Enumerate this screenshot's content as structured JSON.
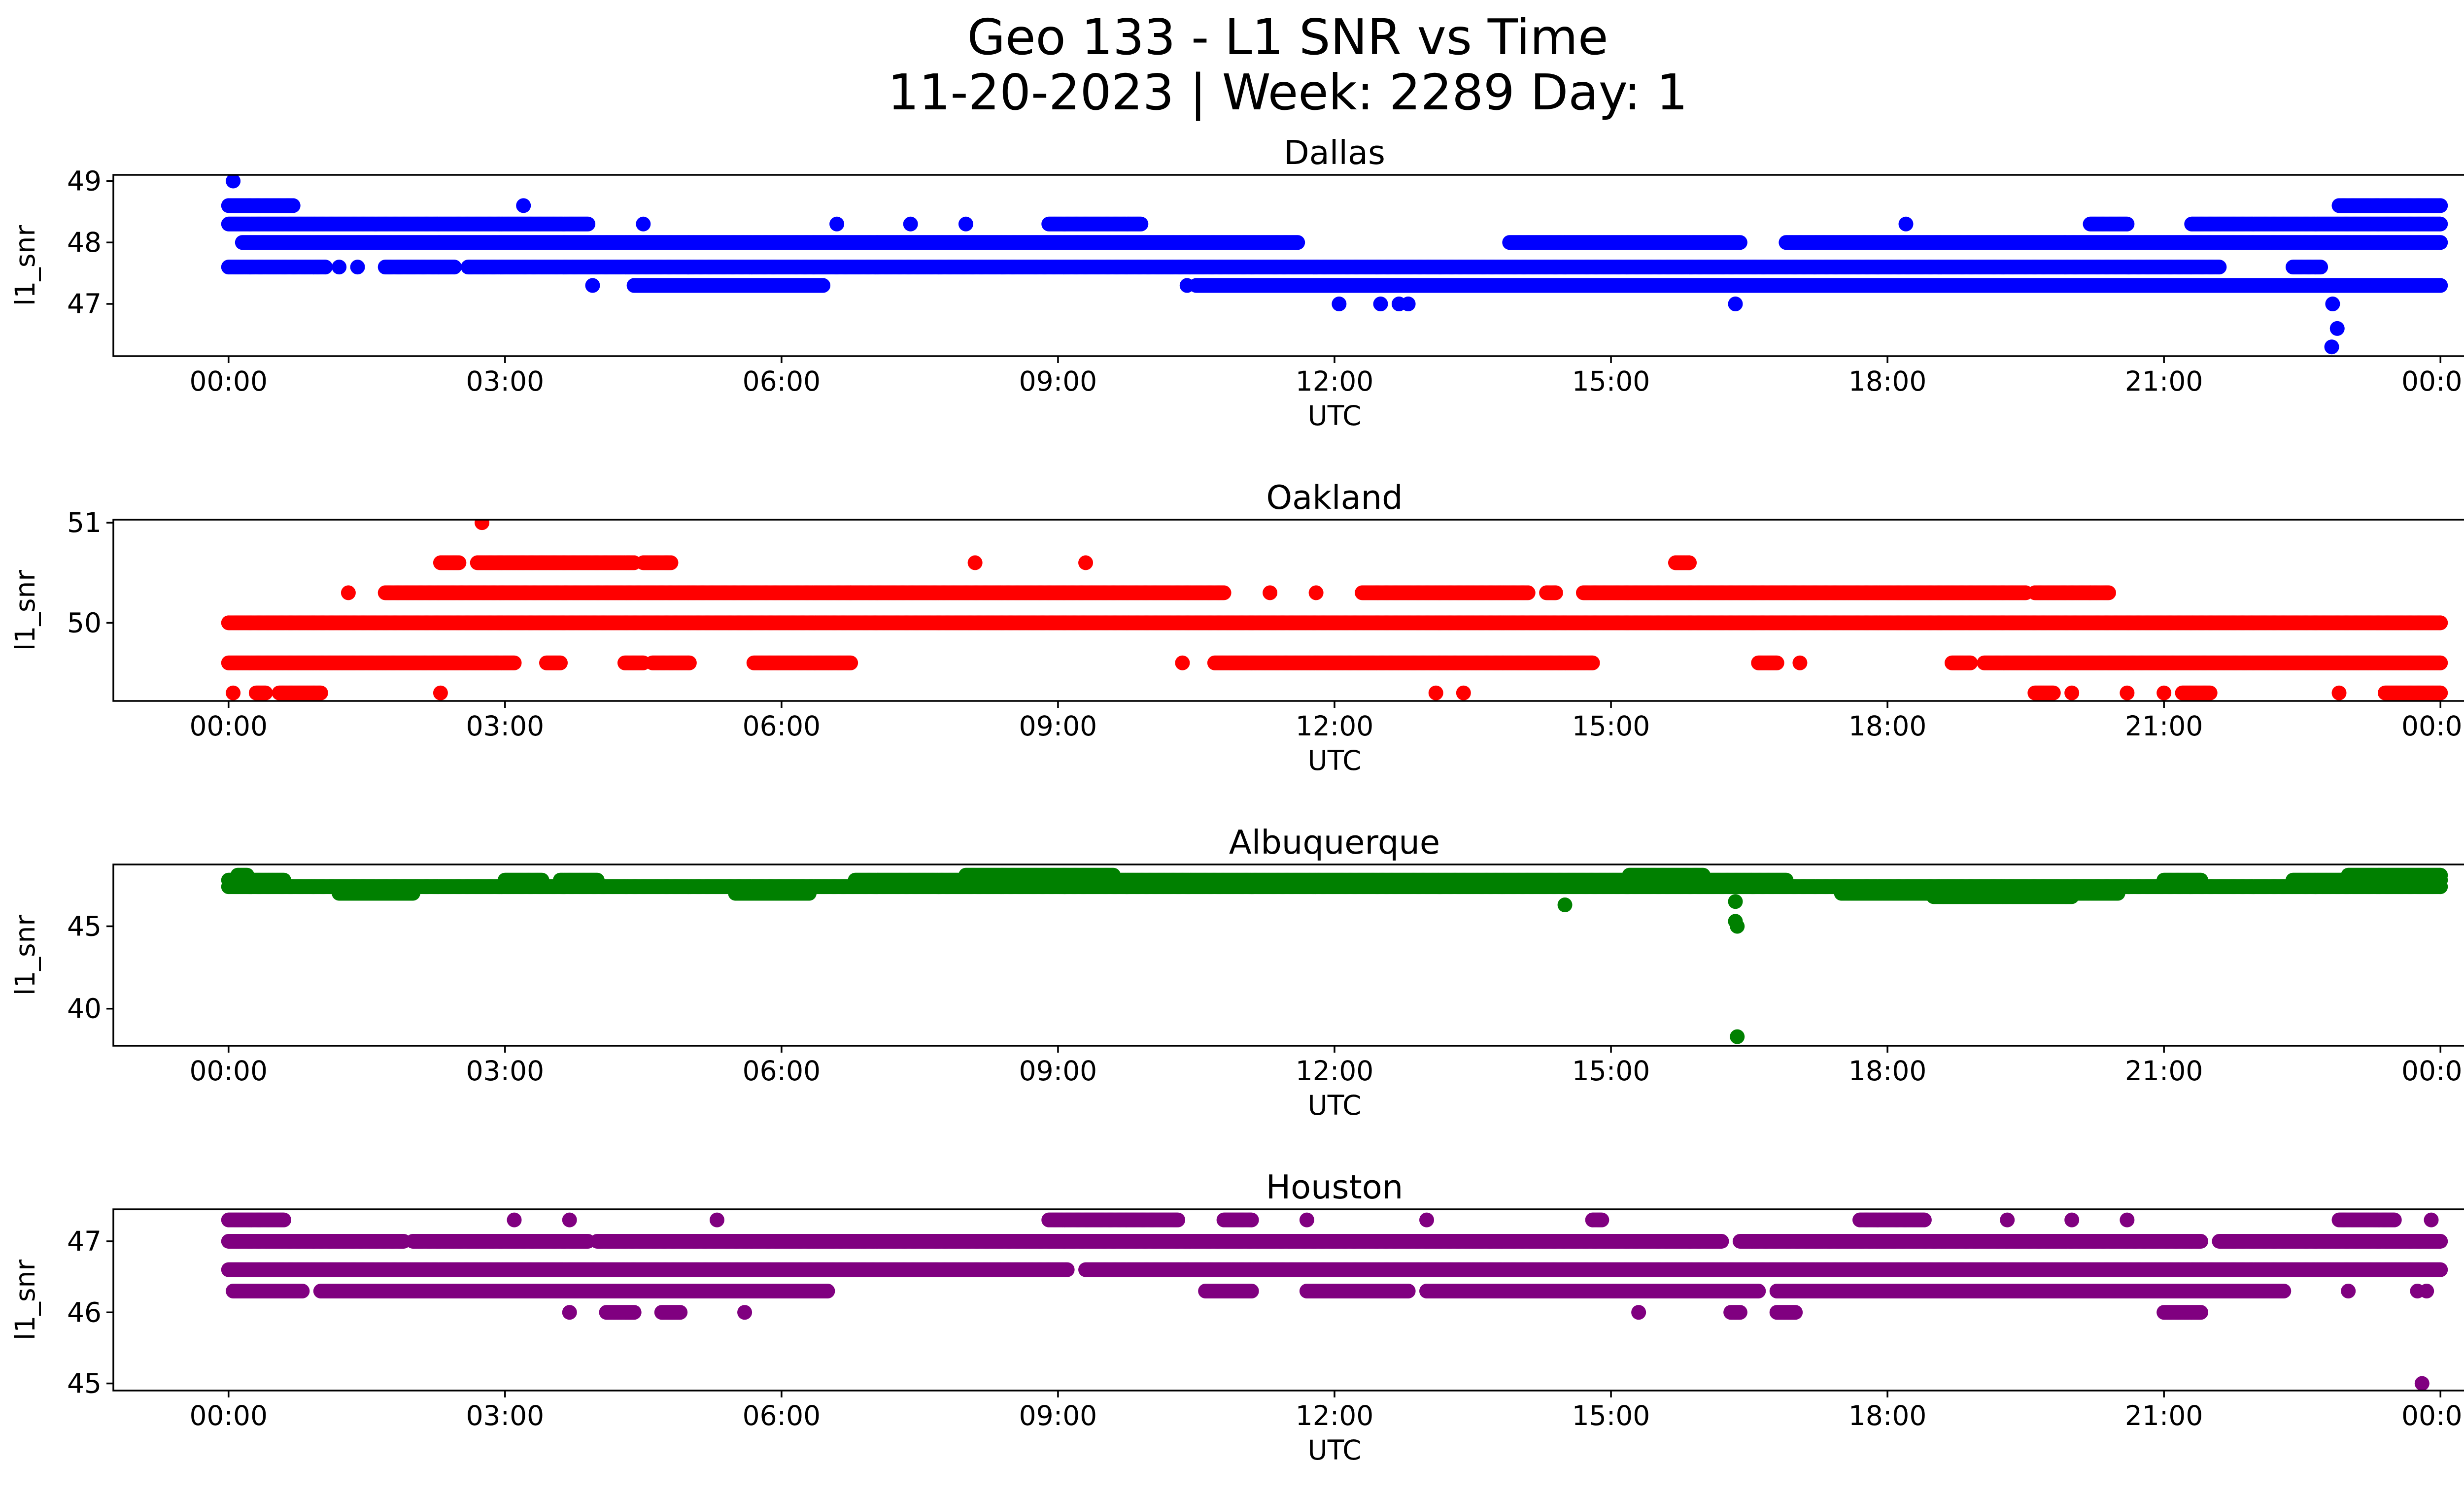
{
  "figure": {
    "title_line1": "Geo 133 - L1 SNR vs Time",
    "title_line2": "11-20-2023 | Week: 2289 Day: 1"
  },
  "chart_data": [
    {
      "type": "scatter",
      "title": "Dallas",
      "xlabel": "UTC",
      "ylabel": "l1_snr",
      "color": "#0000ff",
      "xlim": [
        -1.25,
        25.25
      ],
      "ylim": [
        46.15,
        49.1
      ],
      "xticks": [
        0,
        3,
        6,
        9,
        12,
        15,
        18,
        21,
        24
      ],
      "xtick_labels": [
        "00:00",
        "03:00",
        "06:00",
        "09:00",
        "12:00",
        "15:00",
        "18:00",
        "21:00",
        "00:00"
      ],
      "yticks": [
        47,
        48,
        49
      ],
      "ytick_labels": [
        "47",
        "48",
        "49"
      ],
      "bands": [
        {
          "y": 48.3,
          "segments": [
            [
              0,
              3.9
            ],
            [
              4.5,
              4.5
            ],
            [
              6.6,
              6.6
            ],
            [
              7.4,
              7.4
            ],
            [
              8.0,
              8.0
            ],
            [
              8.9,
              9.9
            ],
            [
              18.2,
              18.2
            ],
            [
              20.2,
              20.6
            ],
            [
              21.3,
              24
            ]
          ]
        },
        {
          "y": 48.0,
          "segments": [
            [
              0.15,
              11.6
            ],
            [
              13.9,
              16.4
            ],
            [
              16.9,
              24
            ]
          ]
        },
        {
          "y": 47.6,
          "segments": [
            [
              0,
              1.05
            ],
            [
              1.7,
              2.45
            ],
            [
              2.6,
              21.6
            ],
            [
              22.4,
              22.7
            ]
          ]
        },
        {
          "y": 47.3,
          "segments": [
            [
              4.4,
              6.45
            ],
            [
              10.5,
              11.2
            ],
            [
              11.1,
              24
            ]
          ]
        },
        {
          "y": 48.6,
          "segments": [
            [
              0,
              0.7
            ],
            [
              3.2,
              3.2
            ],
            [
              22.9,
              24
            ]
          ]
        }
      ],
      "points": [
        [
          0.05,
          49.0
        ],
        [
          1.2,
          47.6
        ],
        [
          1.4,
          47.6
        ],
        [
          3.95,
          47.3
        ],
        [
          10.4,
          47.3
        ],
        [
          12.05,
          47.0
        ],
        [
          12.5,
          47.0
        ],
        [
          12.7,
          47.0
        ],
        [
          12.8,
          47.0
        ],
        [
          16.35,
          47.0
        ],
        [
          22.83,
          47.3
        ],
        [
          22.83,
          47.0
        ],
        [
          22.88,
          46.6
        ],
        [
          22.82,
          46.3
        ]
      ]
    },
    {
      "type": "scatter",
      "title": "Oakland",
      "xlabel": "UTC",
      "ylabel": "l1_snr",
      "color": "#ff0000",
      "xlim": [
        -1.25,
        25.25
      ],
      "ylim": [
        49.22,
        51.03
      ],
      "xticks": [
        0,
        3,
        6,
        9,
        12,
        15,
        18,
        21,
        24
      ],
      "xtick_labels": [
        "00:00",
        "03:00",
        "06:00",
        "09:00",
        "12:00",
        "15:00",
        "18:00",
        "21:00",
        "00:00"
      ],
      "yticks": [
        50,
        51
      ],
      "ytick_labels": [
        "50",
        "51"
      ],
      "bands": [
        {
          "y": 50.0,
          "segments": [
            [
              0,
              24
            ]
          ]
        },
        {
          "y": 49.6,
          "segments": [
            [
              0,
              3.1
            ],
            [
              3.45,
              3.6
            ],
            [
              4.3,
              4.5
            ],
            [
              4.6,
              5.0
            ],
            [
              5.7,
              6.75
            ],
            [
              10.35,
              10.35
            ],
            [
              10.7,
              14.8
            ],
            [
              16.6,
              16.8
            ],
            [
              17.05,
              17.05
            ],
            [
              18.7,
              18.9
            ],
            [
              19.05,
              24
            ]
          ]
        },
        {
          "y": 50.3,
          "segments": [
            [
              1.3,
              1.3
            ],
            [
              1.7,
              6.75
            ],
            [
              6.75,
              10.8
            ],
            [
              11.3,
              11.3
            ],
            [
              11.8,
              11.8
            ],
            [
              12.3,
              14.1
            ],
            [
              14.3,
              14.4
            ],
            [
              14.7,
              19.5
            ],
            [
              19.6,
              20.2
            ],
            [
              20.2,
              20.4
            ]
          ]
        },
        {
          "y": 50.6,
          "segments": [
            [
              2.3,
              2.5
            ],
            [
              2.7,
              4.4
            ],
            [
              4.5,
              4.8
            ],
            [
              8.1,
              8.1
            ],
            [
              9.3,
              9.3
            ],
            [
              15.7,
              15.85
            ]
          ]
        },
        {
          "y": 49.3,
          "segments": [
            [
              0.05,
              0.05
            ],
            [
              0.3,
              0.4
            ],
            [
              0.55,
              1.0
            ],
            [
              19.6,
              19.8
            ],
            [
              20.0,
              20.0
            ],
            [
              20.6,
              20.6
            ],
            [
              21.0,
              21.0
            ],
            [
              21.2,
              21.5
            ],
            [
              22.9,
              22.9
            ],
            [
              23.4,
              24
            ]
          ]
        }
      ],
      "points": [
        [
          2.75,
          51.0
        ],
        [
          2.3,
          49.3
        ],
        [
          13.1,
          49.3
        ],
        [
          13.4,
          49.3
        ]
      ]
    },
    {
      "type": "scatter",
      "title": "Albuquerque",
      "xlabel": "UTC",
      "ylabel": "l1_snr",
      "color": "#008000",
      "xlim": [
        -1.25,
        25.25
      ],
      "ylim": [
        37.75,
        48.75
      ],
      "xticks": [
        0,
        3,
        6,
        9,
        12,
        15,
        18,
        21,
        24
      ],
      "xtick_labels": [
        "00:00",
        "03:00",
        "06:00",
        "09:00",
        "12:00",
        "15:00",
        "18:00",
        "21:00",
        "00:00"
      ],
      "yticks": [
        40,
        45
      ],
      "ytick_labels": [
        "40",
        "45"
      ],
      "bands": [
        {
          "y": 47.4,
          "segments": [
            [
              0,
              24
            ]
          ]
        },
        {
          "y": 47.8,
          "segments": [
            [
              0,
              0.6
            ],
            [
              3.0,
              3.4
            ],
            [
              3.6,
              4.0
            ],
            [
              6.8,
              16.9
            ],
            [
              21.0,
              21.4
            ],
            [
              22.4,
              24
            ]
          ]
        },
        {
          "y": 47.0,
          "segments": [
            [
              1.2,
              2.0
            ],
            [
              5.5,
              6.3
            ],
            [
              17.5,
              20.5
            ]
          ]
        },
        {
          "y": 48.1,
          "segments": [
            [
              0.1,
              0.2
            ],
            [
              8.0,
              9.6
            ],
            [
              15.2,
              16.0
            ],
            [
              23.0,
              24
            ]
          ]
        },
        {
          "y": 46.8,
          "segments": [
            [
              18.5,
              20.0
            ]
          ]
        }
      ],
      "points": [
        [
          14.5,
          46.3
        ],
        [
          16.35,
          46.5
        ],
        [
          16.35,
          45.3
        ],
        [
          16.37,
          45.0
        ],
        [
          16.37,
          38.3
        ]
      ]
    },
    {
      "type": "scatter",
      "title": "Houston",
      "xlabel": "UTC",
      "ylabel": "l1_snr",
      "color": "#800080",
      "xlim": [
        -1.25,
        25.25
      ],
      "ylim": [
        44.9,
        47.45
      ],
      "xticks": [
        0,
        3,
        6,
        9,
        12,
        15,
        18,
        21,
        24
      ],
      "xtick_labels": [
        "00:00",
        "03:00",
        "06:00",
        "09:00",
        "12:00",
        "15:00",
        "18:00",
        "21:00",
        "00:00"
      ],
      "yticks": [
        45,
        46,
        47
      ],
      "ytick_labels": [
        "45",
        "46",
        "47"
      ],
      "bands": [
        {
          "y": 47.0,
          "segments": [
            [
              0,
              1.9
            ],
            [
              2.0,
              3.9
            ],
            [
              4.0,
              16.2
            ],
            [
              16.4,
              21.4
            ],
            [
              21.6,
              24
            ]
          ]
        },
        {
          "y": 46.6,
          "segments": [
            [
              0,
              9.1
            ],
            [
              9.3,
              24
            ]
          ]
        },
        {
          "y": 46.3,
          "segments": [
            [
              0.05,
              0.8
            ],
            [
              1.0,
              6.5
            ],
            [
              10.6,
              11.1
            ],
            [
              11.7,
              12.8
            ],
            [
              13.0,
              16.6
            ],
            [
              16.8,
              22.3
            ]
          ]
        },
        {
          "y": 47.3,
          "segments": [
            [
              0,
              0.6
            ],
            [
              3.1,
              3.1
            ],
            [
              3.7,
              3.7
            ],
            [
              5.3,
              5.3
            ],
            [
              8.9,
              10.3
            ],
            [
              10.8,
              11.1
            ],
            [
              11.7,
              11.7
            ],
            [
              13.0,
              13.0
            ],
            [
              14.8,
              14.9
            ],
            [
              17.7,
              18.4
            ],
            [
              19.3,
              19.3
            ],
            [
              20.0,
              20.0
            ],
            [
              20.6,
              20.6
            ],
            [
              22.9,
              23.5
            ],
            [
              23.9,
              23.9
            ]
          ]
        },
        {
          "y": 46.0,
          "segments": [
            [
              3.7,
              3.7
            ],
            [
              4.1,
              4.4
            ],
            [
              4.7,
              4.9
            ],
            [
              5.6,
              5.6
            ],
            [
              15.3,
              15.3
            ],
            [
              16.3,
              16.4
            ],
            [
              16.8,
              17.0
            ],
            [
              21.0,
              21.4
            ]
          ]
        }
      ],
      "points": [
        [
          23.0,
          46.3
        ],
        [
          23.75,
          46.3
        ],
        [
          23.85,
          46.3
        ],
        [
          23.8,
          45.0
        ]
      ]
    }
  ]
}
